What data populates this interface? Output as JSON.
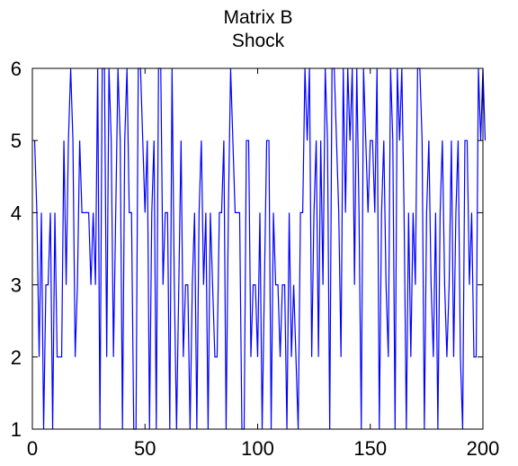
{
  "chart_data": {
    "type": "line",
    "title": [
      "Matrix B",
      "Shock"
    ],
    "xlabel": "",
    "ylabel": "",
    "xlim": [
      0,
      200
    ],
    "ylim": [
      1,
      6
    ],
    "x_ticks": [
      0,
      50,
      100,
      150,
      200
    ],
    "y_ticks": [
      1,
      2,
      3,
      4,
      5,
      6
    ],
    "grid": false,
    "legend": "none",
    "series": [
      {
        "color": "#0000ff",
        "x_start": 1,
        "x_step": 1,
        "values": [
          5,
          4,
          2,
          4,
          1,
          3,
          3,
          4,
          1,
          4,
          2,
          2,
          2,
          5,
          3,
          5,
          6,
          5,
          2,
          3,
          5,
          4,
          4,
          4,
          4,
          3,
          4,
          3,
          6,
          1,
          6,
          6,
          2,
          6,
          5,
          2,
          4,
          6,
          5,
          1,
          5,
          6,
          4,
          4,
          1,
          1,
          6,
          6,
          5,
          4,
          5,
          1,
          4,
          5,
          1,
          6,
          6,
          3,
          4,
          4,
          1,
          6,
          3,
          1,
          3,
          5,
          2,
          3,
          3,
          1,
          3,
          4,
          1,
          4,
          5,
          3,
          4,
          1,
          4,
          3,
          2,
          2,
          4,
          4,
          5,
          1,
          4,
          6,
          5,
          4,
          4,
          4,
          1,
          1,
          5,
          5,
          2,
          3,
          3,
          2,
          4,
          1,
          3,
          5,
          5,
          1,
          4,
          3,
          3,
          2,
          3,
          3,
          1,
          4,
          2,
          3,
          2,
          1,
          4,
          4,
          6,
          5,
          6,
          2,
          4,
          5,
          2,
          5,
          3,
          6,
          5,
          1,
          6,
          6,
          5,
          4,
          2,
          6,
          4,
          6,
          5,
          6,
          3,
          6,
          4,
          1,
          6,
          5,
          4,
          5,
          5,
          4,
          6,
          1,
          4,
          5,
          3,
          2,
          6,
          5,
          1,
          6,
          5,
          6,
          4,
          1,
          4,
          2,
          4,
          3,
          6,
          6,
          5,
          1,
          4,
          5,
          3,
          2,
          4,
          1,
          4,
          5,
          3,
          2,
          3,
          5,
          2,
          4,
          5,
          2,
          1,
          5,
          5,
          3,
          4,
          2,
          2,
          6,
          5,
          6,
          5
        ]
      }
    ]
  }
}
